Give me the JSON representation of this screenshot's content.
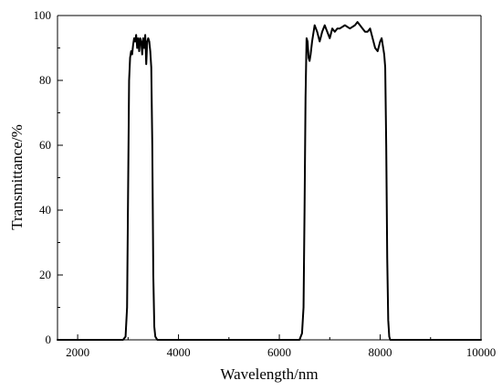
{
  "chart_data": {
    "type": "line",
    "title": "",
    "xlabel": "Wavelength/nm",
    "ylabel": "Transmittance/%",
    "xlim": [
      1600,
      10000
    ],
    "ylim": [
      0,
      100
    ],
    "x_ticks": [
      2000,
      4000,
      6000,
      8000,
      10000
    ],
    "y_ticks": [
      0,
      20,
      40,
      60,
      80,
      100
    ],
    "x_minor_step": 1000,
    "y_minor_step": 10,
    "grid": false,
    "legend": "none",
    "line_color": "#000000",
    "series": [
      {
        "x": [
          1600,
          2000,
          2500,
          2900,
          2950,
          2980,
          3000,
          3020,
          3040,
          3060,
          3080,
          3100,
          3120,
          3140,
          3160,
          3180,
          3200,
          3220,
          3240,
          3260,
          3280,
          3300,
          3320,
          3340,
          3360,
          3380,
          3400,
          3420,
          3440,
          3460,
          3480,
          3500,
          3520,
          3540,
          3580,
          3650,
          4000,
          5000,
          6000,
          6400,
          6450,
          6480,
          6500,
          6520,
          6540,
          6560,
          6580,
          6600,
          6620,
          6650,
          6700,
          6750,
          6800,
          6850,
          6900,
          6950,
          7000,
          7050,
          7100,
          7150,
          7200,
          7300,
          7400,
          7500,
          7550,
          7600,
          7650,
          7700,
          7750,
          7800,
          7850,
          7900,
          7950,
          8000,
          8030,
          8060,
          8080,
          8100,
          8120,
          8140,
          8160,
          8180,
          8200,
          8220,
          8240,
          8260,
          8300,
          8400,
          9000,
          10000
        ],
        "y": [
          0,
          0,
          0,
          0,
          1,
          10,
          45,
          80,
          87,
          89,
          88,
          91,
          93,
          92,
          94,
          90,
          93,
          89,
          93,
          92,
          88,
          93,
          90,
          94,
          85,
          92,
          93,
          92,
          89,
          84,
          60,
          20,
          4,
          1,
          0,
          0,
          0,
          0,
          0,
          0,
          2,
          10,
          40,
          75,
          93,
          92,
          87,
          86,
          88,
          92,
          97,
          95,
          92,
          95,
          97,
          95,
          93,
          96,
          95,
          96,
          96,
          97,
          96,
          97,
          98,
          97,
          96,
          95,
          95,
          96,
          93,
          90,
          89,
          92,
          93,
          90,
          88,
          84,
          60,
          25,
          6,
          1,
          0,
          0,
          0,
          0,
          0,
          0,
          0,
          0
        ]
      }
    ]
  }
}
